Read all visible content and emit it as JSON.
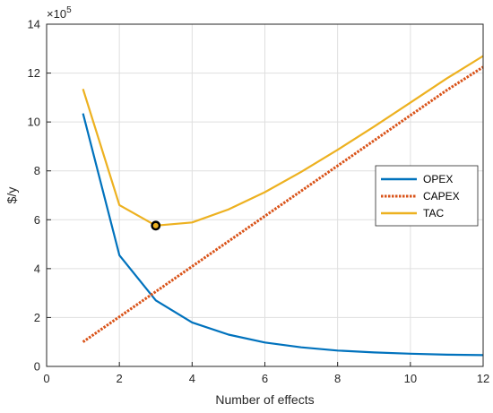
{
  "chart_data": {
    "type": "line",
    "xlabel": "Number of effects",
    "ylabel": "$/y",
    "exponent_base": "×10",
    "exponent_power": "5",
    "xlim": [
      0,
      12
    ],
    "ylim": [
      0,
      14
    ],
    "x_ticks": [
      "0",
      "2",
      "4",
      "6",
      "8",
      "10",
      "12"
    ],
    "y_ticks": [
      "0",
      "2",
      "4",
      "6",
      "8",
      "10",
      "12",
      "14"
    ],
    "grid": true,
    "legend_position": "right-middle",
    "series": [
      {
        "name": "OPEX",
        "color": "#0072BD",
        "style": "solid",
        "x": [
          1,
          2,
          3,
          4,
          5,
          6,
          7,
          8,
          9,
          10,
          11,
          12
        ],
        "y": [
          10.35,
          4.55,
          2.7,
          1.8,
          1.3,
          0.98,
          0.78,
          0.65,
          0.57,
          0.52,
          0.48,
          0.46
        ]
      },
      {
        "name": "CAPEX",
        "color": "#D95319",
        "style": "dotted",
        "x": [
          1,
          2,
          3,
          4,
          5,
          6,
          7,
          8,
          9,
          10,
          11,
          12
        ],
        "y": [
          1.0,
          2.03,
          3.06,
          4.09,
          5.12,
          6.15,
          7.18,
          8.21,
          9.24,
          10.27,
          11.3,
          12.25
        ]
      },
      {
        "name": "TAC",
        "color": "#EDB120",
        "style": "solid",
        "x": [
          1,
          2,
          3,
          4,
          5,
          6,
          7,
          8,
          9,
          10,
          11,
          12
        ],
        "y": [
          11.35,
          6.6,
          5.76,
          5.89,
          6.42,
          7.13,
          7.96,
          8.86,
          9.81,
          10.79,
          11.78,
          12.7
        ]
      }
    ],
    "highlight_point": {
      "x": 3,
      "y": 5.76,
      "series": "TAC"
    }
  }
}
